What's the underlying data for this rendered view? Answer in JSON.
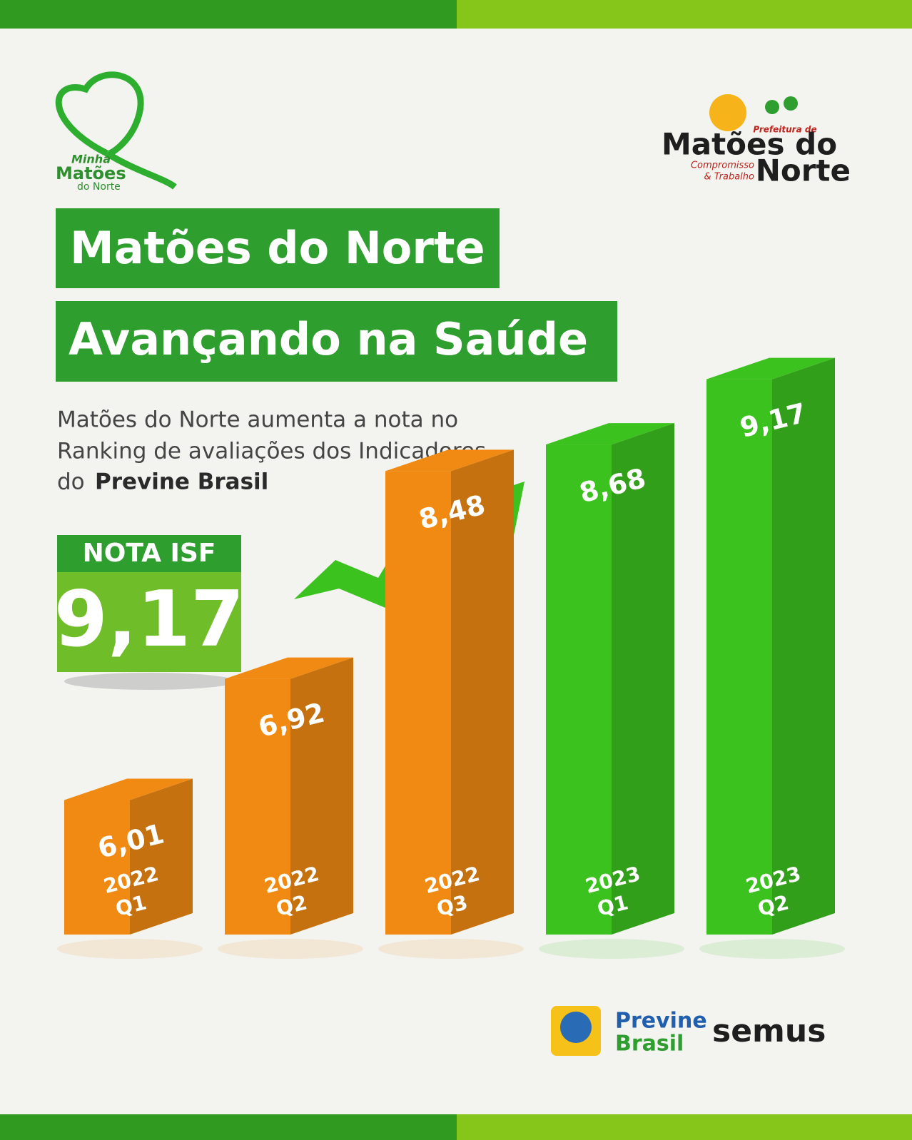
{
  "chart_data": {
    "type": "bar",
    "title": [
      "Matões do Norte",
      "Avançando na Saúde"
    ],
    "subtitle": [
      "Matões do Norte aumenta a nota no",
      "Ranking de avaliações dos Indicadores",
      "do"
    ],
    "subtitle_emphasis": "Previne Brasil",
    "highlight": {
      "label": "NOTA ISF",
      "value": 9.17,
      "value_label": "9,17"
    },
    "categories": [
      [
        "2022",
        "Q1"
      ],
      [
        "2022",
        "Q2"
      ],
      [
        "2022",
        "Q3"
      ],
      [
        "2023",
        "Q1"
      ],
      [
        "2023",
        "Q2"
      ]
    ],
    "values": [
      6.01,
      6.92,
      8.48,
      8.68,
      9.17
    ],
    "value_labels": [
      "6,01",
      "6,92",
      "8,48",
      "8,68",
      "9,17"
    ],
    "colors": [
      "#f08a12",
      "#f08a12",
      "#f08a12",
      "#3cc21e",
      "#3cc21e"
    ],
    "ylim": [
      5,
      9.5
    ]
  },
  "logos": {
    "left": [
      "Minha",
      "Matões",
      "do Norte"
    ],
    "right": {
      "prefix": "Prefeitura de",
      "name": [
        "Matões do",
        "Norte"
      ],
      "motto": [
        "Compromisso",
        "& Trabalho"
      ]
    },
    "footer": {
      "program": [
        "Previne",
        "Brasil"
      ],
      "agency": "semus"
    }
  }
}
